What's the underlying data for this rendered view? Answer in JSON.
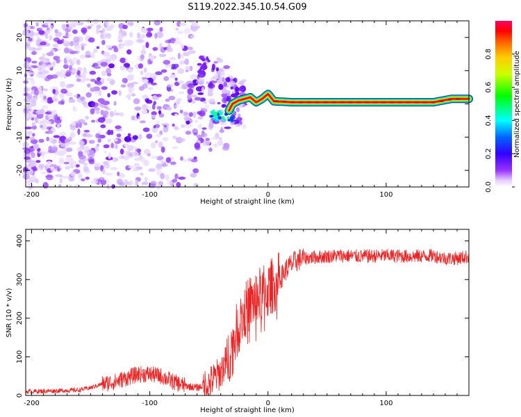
{
  "title": "S119.2022.345.10.54.G09",
  "chart_data": [
    {
      "type": "heatmap",
      "xlabel": "Height of straight line (km)",
      "ylabel": "Frequency (Hz)",
      "xlim": [
        -205,
        170
      ],
      "ylim": [
        -25,
        25
      ],
      "xticks": [
        -200,
        -100,
        0,
        100
      ],
      "yticks": [
        -20,
        -10,
        0,
        10,
        20
      ],
      "colorbar": {
        "label": "Normalized spectral amplitude",
        "range": [
          0,
          1
        ],
        "ticks": [
          "0.0",
          "0.2",
          "0.4",
          "0.6",
          "0.8"
        ],
        "colormap": "rainbow"
      },
      "ridge": {
        "description": "dominant frequency ridge",
        "x": [
          -33,
          -30,
          -25,
          -20,
          -15,
          -10,
          -5,
          0,
          5,
          20,
          50,
          100,
          140,
          155,
          170
        ],
        "y": [
          -2,
          0,
          1,
          1.5,
          2,
          0.5,
          1.5,
          3,
          0.8,
          0.5,
          0.5,
          0.5,
          0.5,
          1.5,
          1.5
        ]
      }
    },
    {
      "type": "line",
      "xlabel": "Height of straight line (km)",
      "ylabel": "SNR (10 * v/v)",
      "xlim": [
        -205,
        170
      ],
      "ylim": [
        0,
        430
      ],
      "xticks": [
        -200,
        -100,
        0,
        100
      ],
      "yticks": [
        0,
        100,
        200,
        300,
        400
      ],
      "color": "#ee2222",
      "series": [
        {
          "x": [
            -205,
            -180,
            -160,
            -150,
            -140,
            -130,
            -120,
            -110,
            -100,
            -90,
            -80,
            -70,
            -60,
            -55,
            -50,
            -45,
            -40,
            -35,
            -30,
            -25,
            -20,
            -15,
            -10,
            -5,
            0,
            5,
            10,
            15,
            20,
            25,
            30,
            40,
            50,
            60,
            80,
            100,
            120,
            140,
            150,
            160,
            170
          ],
          "values": [
            10,
            12,
            14,
            20,
            30,
            35,
            45,
            55,
            55,
            50,
            35,
            25,
            20,
            25,
            30,
            45,
            60,
            90,
            130,
            180,
            215,
            240,
            250,
            265,
            270,
            290,
            300,
            325,
            340,
            350,
            355,
            358,
            360,
            362,
            360,
            362,
            360,
            362,
            355,
            355,
            360
          ]
        }
      ]
    }
  ]
}
